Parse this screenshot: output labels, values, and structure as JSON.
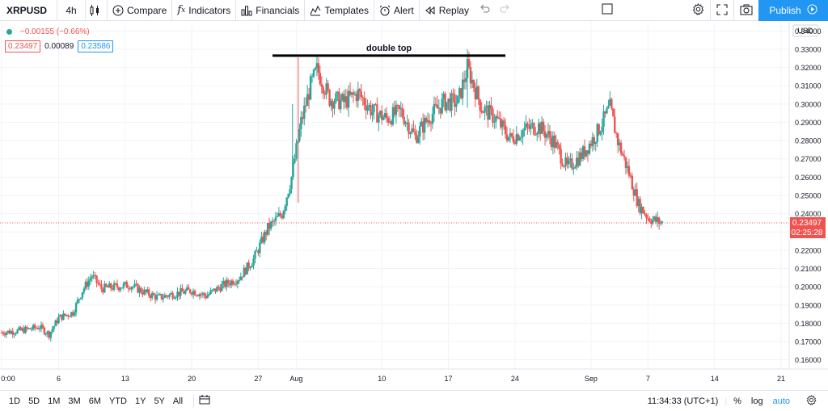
{
  "toolbar": {
    "symbol": "XRPUSD",
    "interval": "4h",
    "compare": "Compare",
    "indicators": "Indicators",
    "financials": "Financials",
    "templates": "Templates",
    "alert": "Alert",
    "replay": "Replay",
    "publish": "Publish"
  },
  "legend": {
    "change": "−0.00155 (−0.66%)",
    "bid": "0.23497",
    "spread": "0.00089",
    "ask": "0.23586"
  },
  "price_axis": {
    "currency": "USD",
    "last_price": "0.23497",
    "countdown": "02:25:28"
  },
  "annotation": {
    "text": "double top"
  },
  "bottombar": {
    "ranges": [
      "1D",
      "5D",
      "1M",
      "3M",
      "6M",
      "YTD",
      "1Y",
      "5Y",
      "All"
    ],
    "time": "11:34:33 (UTC+1)",
    "percent": "%",
    "log": "log",
    "auto": "auto"
  },
  "colors": {
    "up": "#26a69a",
    "down": "#ef5350",
    "accent": "#2196f3",
    "grid": "#f0f3fa"
  },
  "chart_data": {
    "type": "candlestick",
    "symbol": "XRPUSD",
    "interval": "4h",
    "ylim": [
      0.155,
      0.345
    ],
    "y_ticks": [
      "0.34000",
      "0.33000",
      "0.32000",
      "0.31000",
      "0.30000",
      "0.29000",
      "0.28000",
      "0.27000",
      "0.26000",
      "0.25000",
      "0.24000",
      "0.23000",
      "0.22000",
      "0.21000",
      "0.20000",
      "0.19000",
      "0.18000",
      "0.17000",
      "0.16000"
    ],
    "x_ticks": [
      "0:00",
      "6",
      "13",
      "20",
      "27",
      "Aug",
      "10",
      "17",
      "24",
      "Sep",
      "7",
      "14",
      "21"
    ],
    "x_tick_days": [
      0,
      6,
      13,
      20,
      27,
      31,
      40,
      47,
      54,
      62,
      68,
      75,
      82
    ],
    "xlim_days": [
      0,
      82
    ],
    "last_price": 0.23497,
    "close_path": [
      {
        "d": 0,
        "p": 0.175
      },
      {
        "d": 2,
        "p": 0.176
      },
      {
        "d": 4,
        "p": 0.178
      },
      {
        "d": 5,
        "p": 0.174
      },
      {
        "d": 6,
        "p": 0.183
      },
      {
        "d": 7.5,
        "p": 0.186
      },
      {
        "d": 8.5,
        "p": 0.198
      },
      {
        "d": 9.5,
        "p": 0.206
      },
      {
        "d": 10.5,
        "p": 0.199
      },
      {
        "d": 12,
        "p": 0.2
      },
      {
        "d": 13.5,
        "p": 0.201
      },
      {
        "d": 15,
        "p": 0.197
      },
      {
        "d": 16.5,
        "p": 0.194
      },
      {
        "d": 18,
        "p": 0.196
      },
      {
        "d": 20,
        "p": 0.198
      },
      {
        "d": 21.5,
        "p": 0.195
      },
      {
        "d": 23,
        "p": 0.2
      },
      {
        "d": 25,
        "p": 0.205
      },
      {
        "d": 26.5,
        "p": 0.215
      },
      {
        "d": 28,
        "p": 0.232
      },
      {
        "d": 29.5,
        "p": 0.24
      },
      {
        "d": 30.5,
        "p": 0.26
      },
      {
        "d": 31.5,
        "p": 0.29
      },
      {
        "d": 32.5,
        "p": 0.31
      },
      {
        "d": 33.2,
        "p": 0.319
      },
      {
        "d": 34.5,
        "p": 0.303
      },
      {
        "d": 36,
        "p": 0.301
      },
      {
        "d": 37.5,
        "p": 0.306
      },
      {
        "d": 39,
        "p": 0.296
      },
      {
        "d": 40.5,
        "p": 0.292
      },
      {
        "d": 42,
        "p": 0.296
      },
      {
        "d": 43.5,
        "p": 0.282
      },
      {
        "d": 45,
        "p": 0.293
      },
      {
        "d": 46.5,
        "p": 0.301
      },
      {
        "d": 48,
        "p": 0.301
      },
      {
        "d": 49,
        "p": 0.32
      },
      {
        "d": 50.5,
        "p": 0.298
      },
      {
        "d": 52,
        "p": 0.292
      },
      {
        "d": 53.5,
        "p": 0.281
      },
      {
        "d": 55,
        "p": 0.286
      },
      {
        "d": 56.5,
        "p": 0.288
      },
      {
        "d": 58,
        "p": 0.28
      },
      {
        "d": 59.5,
        "p": 0.265
      },
      {
        "d": 61,
        "p": 0.272
      },
      {
        "d": 62.5,
        "p": 0.283
      },
      {
        "d": 64,
        "p": 0.298
      },
      {
        "d": 64.8,
        "p": 0.28
      },
      {
        "d": 66,
        "p": 0.262
      },
      {
        "d": 67,
        "p": 0.245
      },
      {
        "d": 68,
        "p": 0.238
      },
      {
        "d": 68.8,
        "p": 0.236
      },
      {
        "d": 69.5,
        "p": 0.235
      }
    ],
    "annotation": {
      "label": "double top",
      "price": 0.3265,
      "day_from": 28.5,
      "day_to": 53
    }
  }
}
